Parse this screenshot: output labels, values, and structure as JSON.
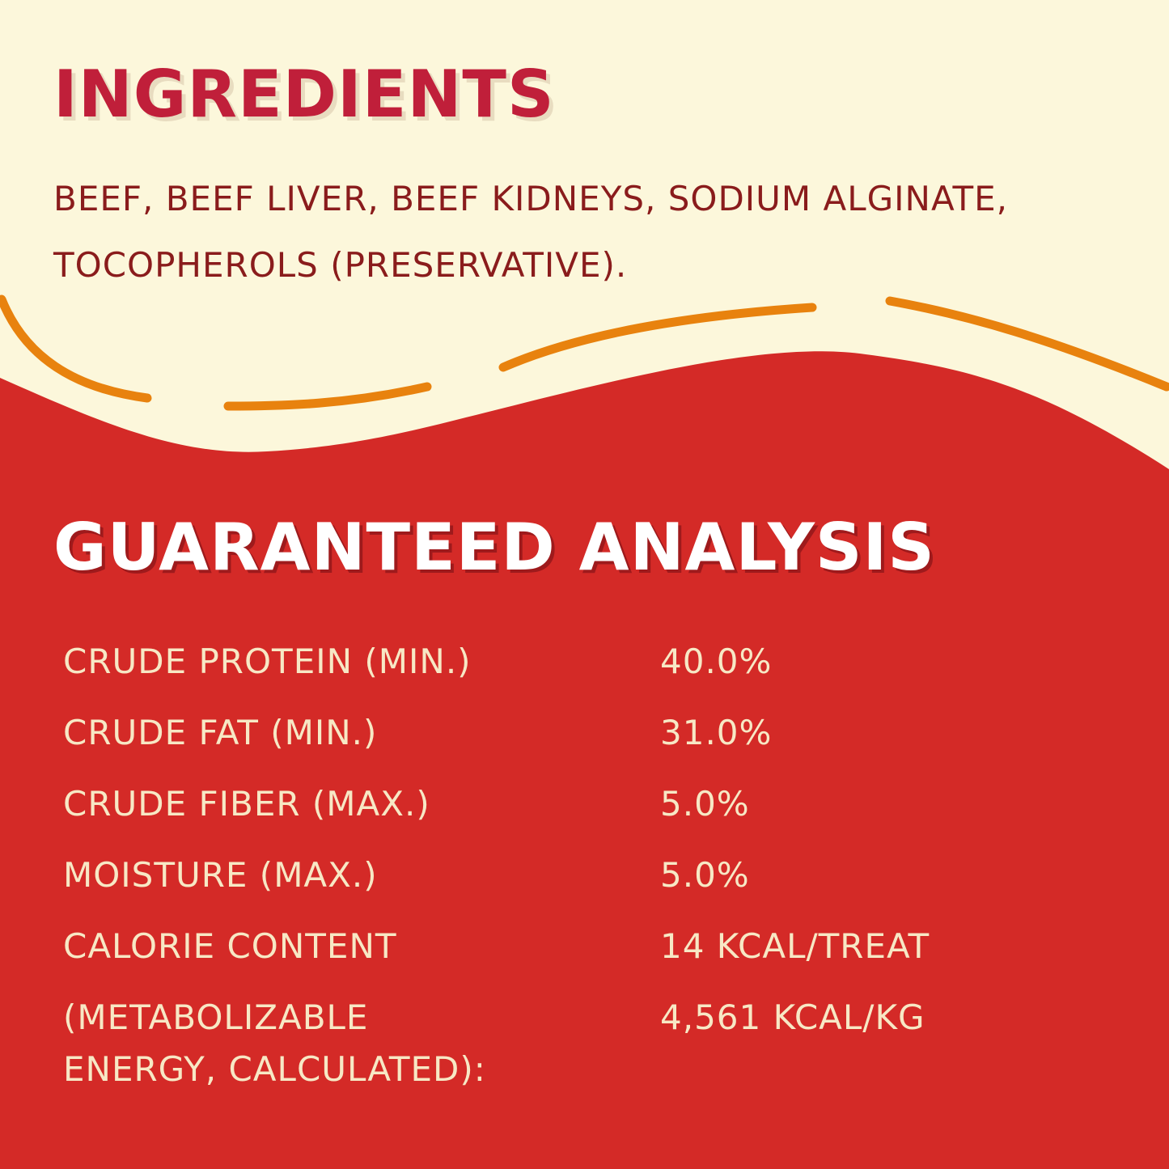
{
  "colors": {
    "cream": "#fcf7db",
    "red": "#d42a27",
    "accent_orange": "#e8820e",
    "title_red": "#c01f3a"
  },
  "ingredients": {
    "title": "INGREDIENTS",
    "text": "BEEF, BEEF LIVER, BEEF KIDNEYS, SODIUM ALGINATE, TOCOPHEROLS (PRESERVATIVE)."
  },
  "analysis": {
    "title": "GUARANTEED ANALYSIS",
    "rows": [
      {
        "label": "CRUDE PROTEIN (MIN.)",
        "value": "40.0%"
      },
      {
        "label": "CRUDE FAT (MIN.)",
        "value": "31.0%"
      },
      {
        "label": "CRUDE FIBER (MAX.)",
        "value": "5.0%"
      },
      {
        "label": "MOISTURE (MAX.)",
        "value": "5.0%"
      },
      {
        "label": "CALORIE CONTENT",
        "value": "14 KCAL/TREAT"
      },
      {
        "label": "(METABOLIZABLE ENERGY, CALCULATED):",
        "value": "4,561 KCAL/KG"
      }
    ]
  }
}
